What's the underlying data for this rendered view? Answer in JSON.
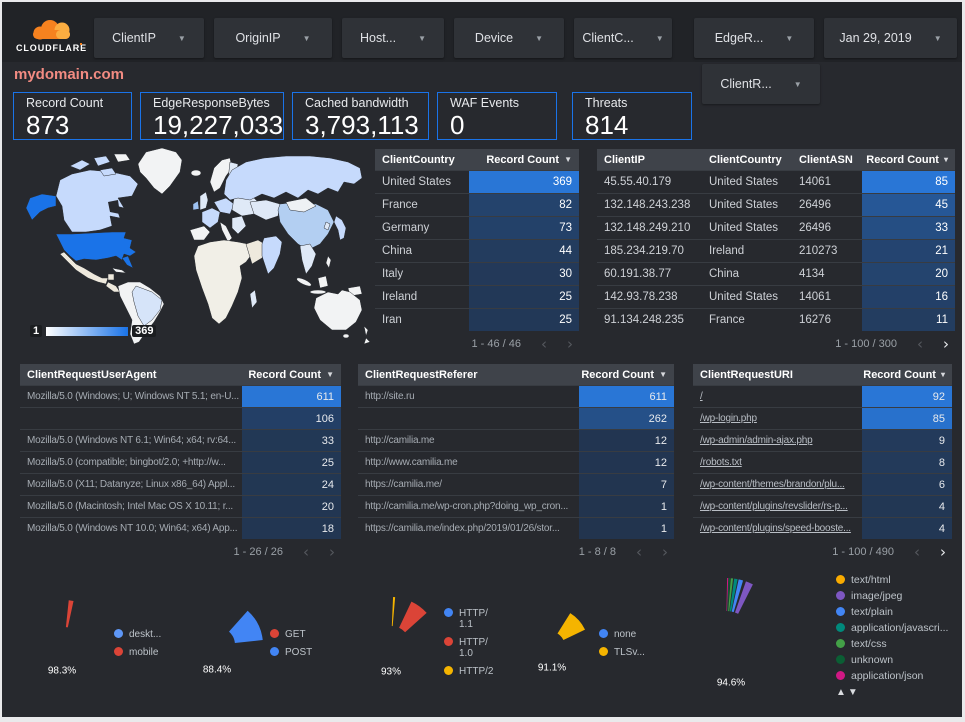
{
  "brand": {
    "name": "CLOUDFLARE"
  },
  "topbar": {
    "filters": [
      {
        "label": "ClientIP"
      },
      {
        "label": "OriginIP"
      },
      {
        "label": "Host..."
      },
      {
        "label": "Device"
      },
      {
        "label": "ClientC..."
      },
      {
        "label": "EdgeR..."
      }
    ],
    "date_filter": "Jan 29, 2019",
    "filter_row2": "ClientR..."
  },
  "page_title": "mydomain.com",
  "scorecards": [
    {
      "label": "Record Count",
      "value": "873"
    },
    {
      "label": "EdgeResponseBytes",
      "value": "19,227,033"
    },
    {
      "label": "Cached bandwidth",
      "value": "3,793,113"
    },
    {
      "label": "WAF Events",
      "value": "0"
    },
    {
      "label": "Threats",
      "value": "814"
    }
  ],
  "map": {
    "legend_min": "1",
    "legend_max": "369"
  },
  "heat_colors": {
    "base": "#22344e",
    "bright": "#2976d6"
  },
  "tables": {
    "country": {
      "columns": [
        "ClientCountry",
        "Record Count"
      ],
      "sort_glyph": "▼",
      "rows": [
        [
          "United States",
          369
        ],
        [
          "France",
          82
        ],
        [
          "Germany",
          73
        ],
        [
          "China",
          44
        ],
        [
          "Italy",
          30
        ],
        [
          "Ireland",
          25
        ],
        [
          "Iran",
          25
        ]
      ],
      "max": 369,
      "pagination": {
        "label": "1 - 46 / 46",
        "prev_enabled": false,
        "next_enabled": false
      }
    },
    "clientip": {
      "columns": [
        "ClientIP",
        "ClientCountry",
        "ClientASN",
        "Record Count"
      ],
      "sort_glyph": "▾",
      "rows": [
        [
          "45.55.40.179",
          "United States",
          "14061",
          85
        ],
        [
          "132.148.243.238",
          "United States",
          "26496",
          45
        ],
        [
          "132.148.249.210",
          "United States",
          "26496",
          33
        ],
        [
          "185.234.219.70",
          "Ireland",
          "210273",
          21
        ],
        [
          "60.191.38.77",
          "China",
          "4134",
          20
        ],
        [
          "142.93.78.238",
          "United States",
          "14061",
          16
        ],
        [
          "91.134.248.235",
          "France",
          "16276",
          11
        ]
      ],
      "max": 85,
      "pagination": {
        "label": "1 - 100 / 300",
        "prev_enabled": false,
        "next_enabled": true
      }
    },
    "useragent": {
      "columns": [
        "ClientRequestUserAgent",
        "Record Count"
      ],
      "sort_glyph": "▼",
      "rows": [
        [
          "Mozilla/5.0 (Windows; U; Windows NT 5.1; en-U...",
          611
        ],
        [
          "",
          106
        ],
        [
          "Mozilla/5.0 (Windows NT 6.1; Win64; x64; rv:64...",
          33
        ],
        [
          "Mozilla/5.0 (compatible; bingbot/2.0; +http://w...",
          25
        ],
        [
          "Mozilla/5.0 (X11; Datanyze; Linux x86_64) Appl...",
          24
        ],
        [
          "Mozilla/5.0 (Macintosh; Intel Mac OS X 10.11; r...",
          20
        ],
        [
          "Mozilla/5.0 (Windows NT 10.0; Win64; x64) App...",
          18
        ]
      ],
      "max": 611,
      "pagination": {
        "label": "1 - 26 / 26",
        "prev_enabled": false,
        "next_enabled": false
      }
    },
    "referer": {
      "columns": [
        "ClientRequestReferer",
        "Record Count"
      ],
      "sort_glyph": "▼",
      "rows": [
        [
          "http://site.ru",
          611
        ],
        [
          "",
          262
        ],
        [
          "http://camilia.me",
          12
        ],
        [
          "http://www.camilia.me",
          12
        ],
        [
          "https://camilia.me/",
          7
        ],
        [
          "http://camilia.me/wp-cron.php?doing_wp_cron...",
          1
        ],
        [
          "https://camilia.me/index.php/2019/01/26/stor...",
          1
        ]
      ],
      "max": 611,
      "pagination": {
        "label": "1 - 8 / 8",
        "prev_enabled": false,
        "next_enabled": false
      }
    },
    "uri": {
      "columns": [
        "ClientRequestURI",
        "Record Count"
      ],
      "sort_glyph": "▾",
      "links": true,
      "rows": [
        [
          "/",
          92
        ],
        [
          "/wp-login.php",
          85
        ],
        [
          "/wp-admin/admin-ajax.php",
          9
        ],
        [
          "/robots.txt",
          8
        ],
        [
          "/wp-content/themes/brandon/plu...",
          6
        ],
        [
          "/wp-content/plugins/revslider/rs-p...",
          4
        ],
        [
          "/wp-content/plugins/speed-booste...",
          4
        ]
      ],
      "max": 92,
      "pagination": {
        "label": "1 - 100 / 490",
        "prev_enabled": false,
        "next_enabled": true
      }
    }
  },
  "donuts": [
    {
      "name": "device",
      "percent_label": "98.3%",
      "slices": [
        {
          "label": "deskt...",
          "value": 98.3,
          "color": "#5e97f6"
        },
        {
          "label": "mobile",
          "value": 1.7,
          "color": "#db4437"
        }
      ]
    },
    {
      "name": "request-method",
      "percent_label": "88.4%",
      "slices": [
        {
          "label": "GET",
          "value": 88.4,
          "color": "#db4437"
        },
        {
          "label": "POST",
          "value": 11.6,
          "color": "#4285f4"
        }
      ]
    },
    {
      "name": "http-protocol",
      "percent_label": "93%",
      "slices": [
        {
          "label": "HTTP/\n1.1",
          "value": 93,
          "color": "#4285f4"
        },
        {
          "label": "HTTP/\n1.0",
          "value": 6.3,
          "color": "#db4437"
        },
        {
          "label": "HTTP/2",
          "value": 0.7,
          "color": "#f5b400"
        }
      ]
    },
    {
      "name": "tls-version",
      "percent_label": "91.1%",
      "slices": [
        {
          "label": "none",
          "value": 91.1,
          "color": "#4285f4"
        },
        {
          "label": "TLSv...",
          "value": 8.9,
          "color": "#f5b400"
        }
      ]
    },
    {
      "name": "content-type",
      "percent_label": "94.6%",
      "slices": [
        {
          "label": "text/html",
          "value": 94.6,
          "color": "#f9ab00"
        },
        {
          "label": "image/jpeg",
          "value": 2.0,
          "color": "#7e57c2"
        },
        {
          "label": "text/plain",
          "value": 1.2,
          "color": "#4285f4"
        },
        {
          "label": "application/javascri...",
          "value": 0.9,
          "color": "#00897b"
        },
        {
          "label": "text/css",
          "value": 0.6,
          "color": "#43a047"
        },
        {
          "label": "unknown",
          "value": 0.4,
          "color": "#0b5e34"
        },
        {
          "label": "application/json",
          "value": 0.3,
          "color": "#d01884"
        }
      ]
    }
  ],
  "legend_sort_arrows": "▲▼"
}
